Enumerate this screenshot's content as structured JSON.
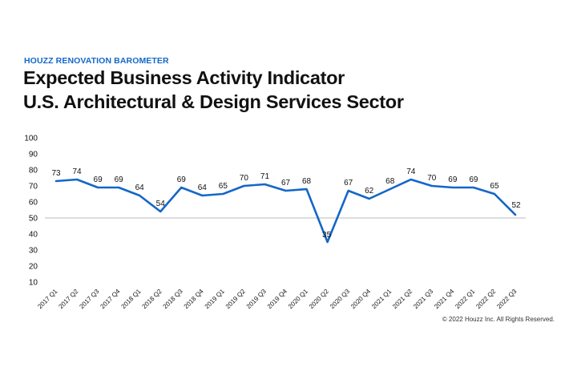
{
  "header": {
    "kicker": "HOUZZ RENOVATION BAROMETER",
    "title_line1": "Expected Business Activity Indicator",
    "title_line2": "U.S. Architectural & Design Services Sector"
  },
  "footer": {
    "copyright": "© 2022 Houzz Inc. All Rights Reserved."
  },
  "colors": {
    "accent": "#1467c8",
    "line": "#1467c8",
    "reference_line": "#bbbbbb"
  },
  "chart_data": {
    "type": "line",
    "title": "Expected Business Activity Indicator",
    "subtitle": "U.S. Architectural & Design Services Sector",
    "xlabel": "",
    "ylabel": "",
    "ylim": [
      10,
      100
    ],
    "yticks": [
      10,
      20,
      30,
      40,
      50,
      60,
      70,
      80,
      90,
      100
    ],
    "reference_line": 50,
    "grid": false,
    "categories": [
      "2017 Q1",
      "2017 Q2",
      "2017 Q3",
      "2017 Q4",
      "2018 Q1",
      "2018 Q2",
      "2018 Q3",
      "2018 Q4",
      "2019 Q1",
      "2019 Q2",
      "2019 Q3",
      "2019 Q4",
      "2020 Q1",
      "2020 Q2",
      "2020 Q3",
      "2020 Q4",
      "2021 Q1",
      "2021 Q2",
      "2021 Q3",
      "2021 Q4",
      "2022 Q1",
      "2022 Q2",
      "2022 Q3"
    ],
    "values": [
      73,
      74,
      69,
      69,
      64,
      54,
      69,
      64,
      65,
      70,
      71,
      67,
      68,
      35,
      67,
      62,
      68,
      74,
      70,
      69,
      69,
      65,
      52
    ]
  }
}
